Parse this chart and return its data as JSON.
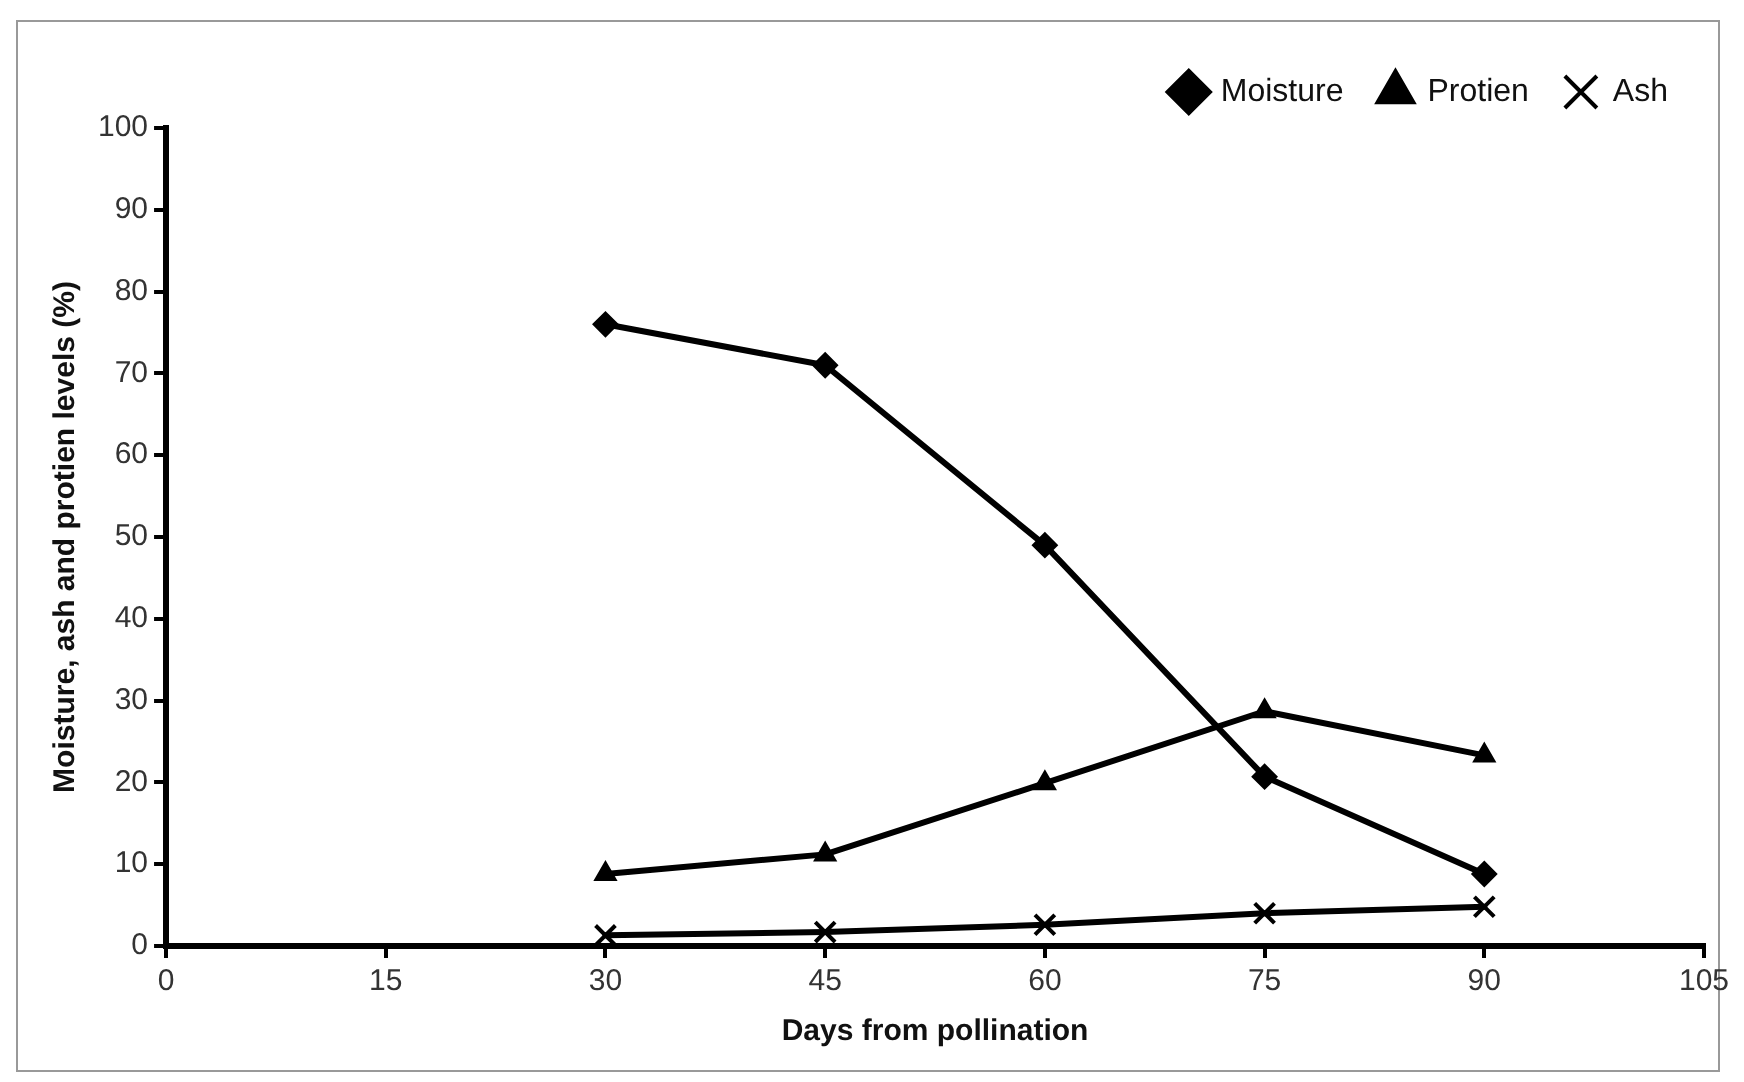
{
  "chart_data": {
    "type": "line",
    "xlabel": "Days from pollination",
    "ylabel": "Moisture, ash and protien levels (%)",
    "x": [
      30,
      45,
      60,
      75,
      90
    ],
    "series": [
      {
        "name": "Moisture",
        "color": "#000000",
        "marker": "diamond",
        "values": [
          76.0,
          71.0,
          49.0,
          20.7,
          8.8
        ]
      },
      {
        "name": "Protien",
        "color": "#000000",
        "marker": "triangle",
        "values": [
          8.8,
          11.2,
          19.9,
          28.7,
          23.3
        ]
      },
      {
        "name": "Ash",
        "color": "#000000",
        "marker": "cross",
        "values": [
          1.3,
          1.7,
          2.6,
          4.0,
          4.8
        ]
      }
    ],
    "xlim": [
      0,
      105
    ],
    "xticks": [
      0,
      15,
      30,
      45,
      60,
      75,
      90,
      105
    ],
    "ylim": [
      0,
      100
    ],
    "yticks": [
      0,
      10,
      20,
      30,
      40,
      50,
      60,
      70,
      80,
      90,
      100
    ],
    "grid": false,
    "legend": "top right",
    "line_style": "solid"
  }
}
